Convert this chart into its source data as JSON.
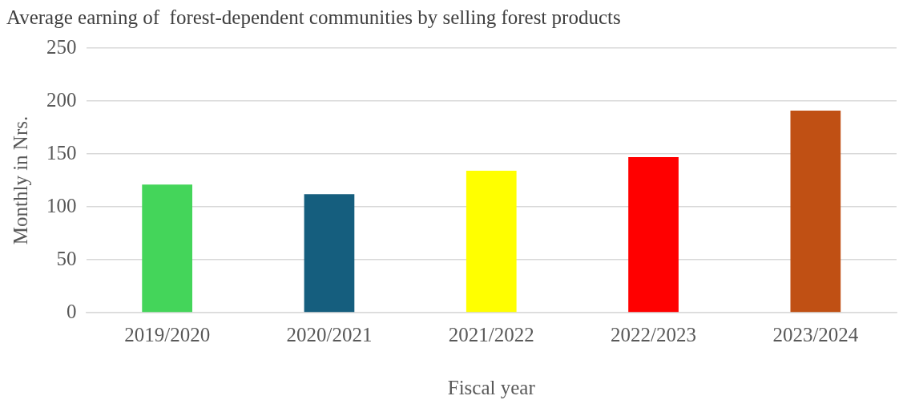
{
  "chart_data": {
    "type": "bar",
    "title": "Average earning of  forest-dependent communities by selling forest products",
    "xlabel": "Fiscal year",
    "ylabel": "Monthly in Nrs.",
    "categories": [
      "2019/2020",
      "2020/2021",
      "2021/2022",
      "2022/2023",
      "2023/2024"
    ],
    "values": [
      121,
      112,
      134,
      147,
      191
    ],
    "colors": [
      "#44d55a",
      "#155e7e",
      "#ffff00",
      "#ff0000",
      "#c05014"
    ],
    "ylim": [
      0,
      250
    ],
    "yticks": [
      0,
      50,
      100,
      150,
      200,
      250
    ],
    "grid": "y"
  }
}
